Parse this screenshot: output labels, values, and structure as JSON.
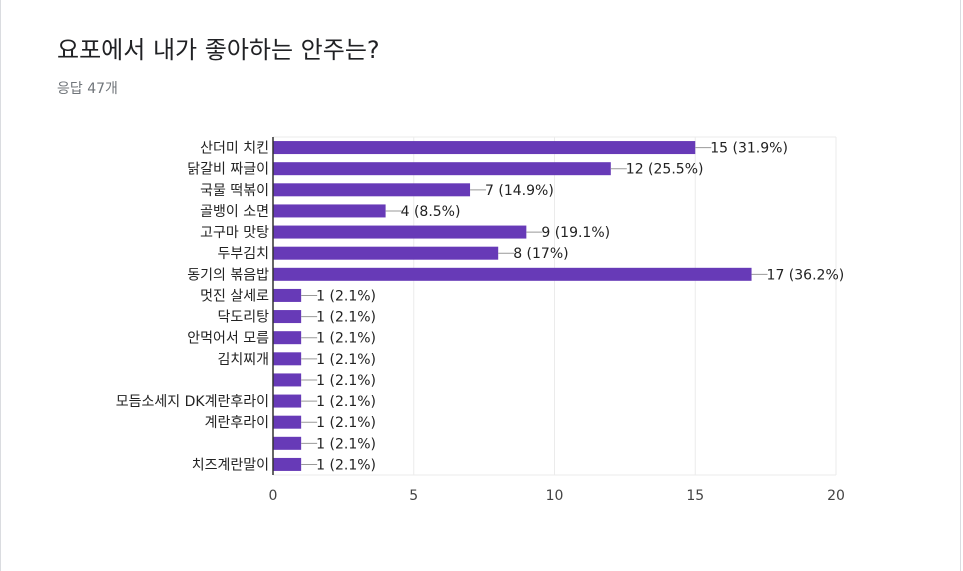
{
  "header": {
    "title": "요포에서 내가 좋아하는 안주는?",
    "response_count": "응답 47개"
  },
  "colors": {
    "bar": "#673ab7",
    "grid": "#ebebeb",
    "axis": "#333333",
    "connector": "#999999"
  },
  "chart_data": {
    "type": "bar",
    "orientation": "horizontal",
    "title": "요포에서 내가 좋아하는 안주는?",
    "xlabel": "",
    "ylabel": "",
    "xlim": [
      0,
      20
    ],
    "xticks": [
      0,
      5,
      10,
      15,
      20
    ],
    "grid": true,
    "categories": [
      "산더미 치킨",
      "닭갈비 짜글이",
      "국물 떡볶이",
      "골뱅이 소면",
      "고구마 맛탕",
      "두부김치",
      "동기의 볶음밥",
      "멋진 살세로",
      "닥도리탕",
      "안먹어서 모름",
      "김치찌개",
      "",
      "모듬소세지 DK계란후라이",
      "계란후라이",
      "",
      "치즈계란말이"
    ],
    "values": [
      15,
      12,
      7,
      4,
      9,
      8,
      17,
      1,
      1,
      1,
      1,
      1,
      1,
      1,
      1,
      1
    ],
    "value_labels": [
      "15 (31.9%)",
      "12 (25.5%)",
      "7 (14.9%)",
      "4 (8.5%)",
      "9 (19.1%)",
      "8 (17%)",
      "17 (36.2%)",
      "1 (2.1%)",
      "1 (2.1%)",
      "1 (2.1%)",
      "1 (2.1%)",
      "1 (2.1%)",
      "1 (2.1%)",
      "1 (2.1%)",
      "1 (2.1%)",
      "1 (2.1%)"
    ]
  }
}
